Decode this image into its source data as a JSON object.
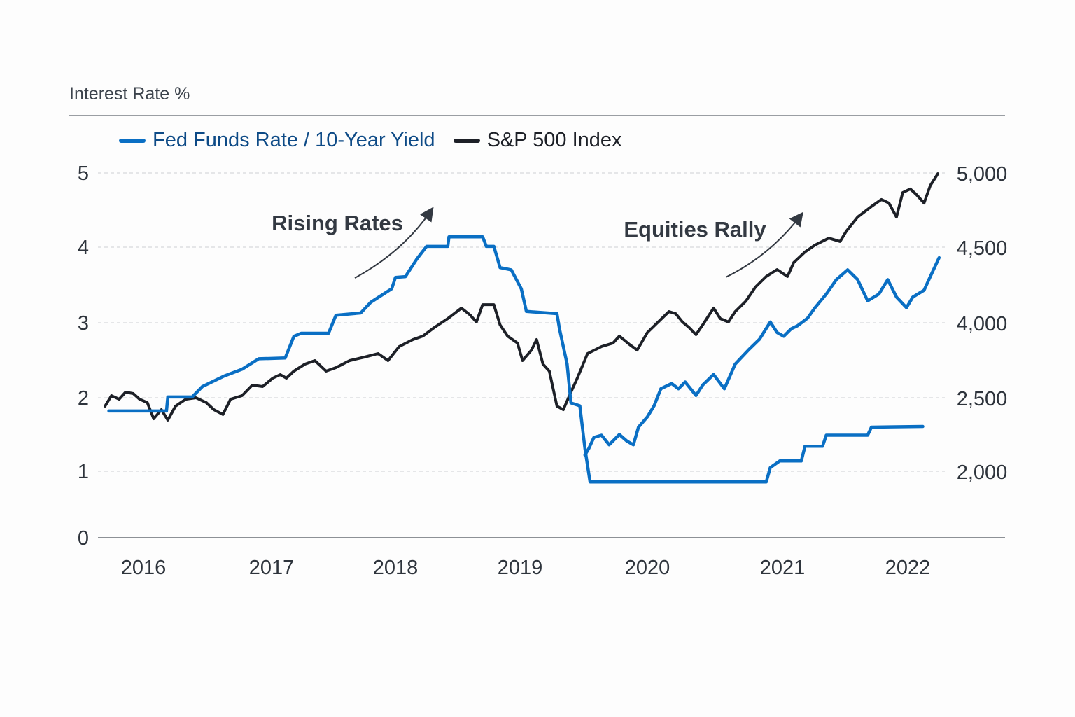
{
  "chart_data": {
    "type": "line",
    "ylabel": "Interest Rate %",
    "legend": [
      {
        "label": "Fed Funds Rate / 10-Year Yield",
        "color": "#0a6fc4"
      },
      {
        "label": "S&P 500 Index",
        "color": "#1d2027"
      }
    ],
    "legend_placement": "top-left",
    "grid": "horizontal dashed",
    "x_ticks": [
      "2016",
      "2017",
      "2018",
      "2019",
      "2020",
      "2021",
      "2022"
    ],
    "y_left_ticks": [
      "0",
      "1",
      "2",
      "3",
      "4",
      "5"
    ],
    "y_left_range": [
      0,
      5
    ],
    "y_right_ticks": [
      {
        "label": "2,000",
        "value": 2000,
        "aligned_left": 1
      },
      {
        "label": "2,500",
        "value": 2500,
        "aligned_left": 2
      },
      {
        "label": "4,000",
        "value": 4000,
        "aligned_left": 3
      },
      {
        "label": "4,500",
        "value": 4500,
        "aligned_left": 4
      },
      {
        "label": "5,000",
        "value": 5000,
        "aligned_left": 5
      }
    ],
    "annotations": [
      {
        "text": "Rising Rates"
      },
      {
        "text": "Equities Rally"
      }
    ],
    "series": [
      {
        "legend_entry": 0,
        "axis": "left",
        "color": "#0a6fc4",
        "points": [
          [
            2015.73,
            1.82
          ],
          [
            2016.18,
            1.82
          ],
          [
            2016.19,
            2.01
          ],
          [
            2016.38,
            2.01
          ],
          [
            2016.46,
            2.15
          ],
          [
            2016.63,
            2.29
          ],
          [
            2016.77,
            2.38
          ],
          [
            2016.9,
            2.52
          ],
          [
            2017.11,
            2.53
          ],
          [
            2017.18,
            2.82
          ],
          [
            2017.24,
            2.86
          ],
          [
            2017.46,
            2.86
          ],
          [
            2017.52,
            3.1
          ],
          [
            2017.72,
            3.13
          ],
          [
            2017.8,
            3.27
          ],
          [
            2017.97,
            3.45
          ],
          [
            2018.0,
            3.6
          ],
          [
            2018.08,
            3.61
          ],
          [
            2018.17,
            3.84
          ],
          [
            2018.25,
            4.01
          ],
          [
            2018.42,
            4.01
          ],
          [
            2018.43,
            4.14
          ],
          [
            2018.7,
            4.14
          ],
          [
            2018.73,
            4.01
          ],
          [
            2018.79,
            4.01
          ],
          [
            2018.84,
            3.73
          ],
          [
            2018.93,
            3.7
          ],
          [
            2019.01,
            3.45
          ],
          [
            2019.05,
            3.15
          ],
          [
            2019.29,
            3.12
          ],
          [
            2019.31,
            2.92
          ],
          [
            2019.37,
            2.45
          ],
          [
            2019.4,
            1.93
          ],
          [
            2019.47,
            1.89
          ],
          [
            2019.51,
            1.31
          ],
          [
            2019.55,
            0.84
          ],
          [
            2020.88,
            0.84
          ],
          [
            2020.91,
            1.05
          ],
          [
            2020.98,
            1.14
          ],
          [
            2021.15,
            1.14
          ],
          [
            2021.18,
            1.34
          ],
          [
            2021.32,
            1.34
          ],
          [
            2021.35,
            1.49
          ],
          [
            2021.68,
            1.49
          ],
          [
            2021.71,
            1.6
          ],
          [
            2022.12,
            1.61
          ]
        ]
      },
      {
        "legend_entry": 0,
        "axis": "left",
        "color": "#0a6fc4",
        "points": [
          [
            2019.51,
            1.22
          ],
          [
            2019.54,
            1.31
          ],
          [
            2019.58,
            1.46
          ],
          [
            2019.64,
            1.49
          ],
          [
            2019.7,
            1.36
          ],
          [
            2019.78,
            1.5
          ],
          [
            2019.84,
            1.41
          ],
          [
            2019.89,
            1.36
          ],
          [
            2019.93,
            1.6
          ],
          [
            2020.0,
            1.74
          ],
          [
            2020.05,
            1.89
          ],
          [
            2020.1,
            2.12
          ],
          [
            2020.18,
            2.19
          ],
          [
            2020.23,
            2.12
          ],
          [
            2020.28,
            2.21
          ],
          [
            2020.36,
            2.03
          ],
          [
            2020.41,
            2.17
          ],
          [
            2020.49,
            2.31
          ],
          [
            2020.57,
            2.12
          ],
          [
            2020.65,
            2.45
          ],
          [
            2020.75,
            2.64
          ],
          [
            2020.83,
            2.78
          ],
          [
            2020.91,
            3.01
          ],
          [
            2020.96,
            2.87
          ],
          [
            2021.01,
            2.82
          ],
          [
            2021.07,
            2.92
          ],
          [
            2021.12,
            2.96
          ],
          [
            2021.2,
            3.06
          ],
          [
            2021.26,
            3.2
          ],
          [
            2021.35,
            3.38
          ],
          [
            2021.43,
            3.57
          ],
          [
            2021.52,
            3.7
          ],
          [
            2021.6,
            3.57
          ],
          [
            2021.68,
            3.29
          ],
          [
            2021.77,
            3.38
          ],
          [
            2021.84,
            3.57
          ],
          [
            2021.91,
            3.34
          ],
          [
            2021.99,
            3.2
          ],
          [
            2022.04,
            3.34
          ],
          [
            2022.13,
            3.43
          ],
          [
            2022.18,
            3.61
          ],
          [
            2022.25,
            3.86
          ]
        ]
      },
      {
        "legend_entry": 1,
        "axis": "right",
        "color": "#1d2027",
        "points": [
          [
            2015.7,
            2443
          ],
          [
            2015.75,
            2542
          ],
          [
            2015.81,
            2490
          ],
          [
            2015.86,
            2612
          ],
          [
            2015.92,
            2584
          ],
          [
            2015.97,
            2490
          ],
          [
            2016.03,
            2467
          ],
          [
            2016.08,
            2357
          ],
          [
            2016.14,
            2419
          ],
          [
            2016.19,
            2348
          ],
          [
            2016.25,
            2443
          ],
          [
            2016.33,
            2490
          ],
          [
            2016.41,
            2500
          ],
          [
            2016.49,
            2467
          ],
          [
            2016.55,
            2419
          ],
          [
            2016.62,
            2386
          ],
          [
            2016.68,
            2490
          ],
          [
            2016.77,
            2542
          ],
          [
            2016.85,
            2752
          ],
          [
            2016.93,
            2725
          ],
          [
            2017.01,
            2893
          ],
          [
            2017.07,
            2962
          ],
          [
            2017.12,
            2893
          ],
          [
            2017.18,
            3033
          ],
          [
            2017.27,
            3173
          ],
          [
            2017.35,
            3243
          ],
          [
            2017.44,
            3033
          ],
          [
            2017.52,
            3103
          ],
          [
            2017.63,
            3243
          ],
          [
            2017.75,
            3313
          ],
          [
            2017.86,
            3383
          ],
          [
            2017.94,
            3243
          ],
          [
            2018.03,
            3523
          ],
          [
            2018.14,
            3664
          ],
          [
            2018.22,
            3734
          ],
          [
            2018.31,
            3902
          ],
          [
            2018.42,
            4028
          ],
          [
            2018.53,
            4097
          ],
          [
            2018.6,
            4051
          ],
          [
            2018.65,
            4005
          ],
          [
            2018.7,
            4120
          ],
          [
            2018.79,
            4120
          ],
          [
            2018.84,
            3958
          ],
          [
            2018.9,
            3734
          ],
          [
            2018.98,
            3593
          ],
          [
            2019.02,
            3243
          ],
          [
            2019.09,
            3453
          ],
          [
            2019.13,
            3664
          ],
          [
            2019.18,
            3173
          ],
          [
            2019.23,
            3033
          ],
          [
            2019.29,
            2443
          ],
          [
            2019.34,
            2419
          ],
          [
            2019.4,
            2612
          ],
          [
            2019.45,
            2893
          ],
          [
            2019.53,
            3383
          ],
          [
            2019.64,
            3523
          ],
          [
            2019.73,
            3593
          ],
          [
            2019.78,
            3734
          ],
          [
            2019.86,
            3565
          ],
          [
            2019.92,
            3453
          ],
          [
            2020.0,
            3804
          ],
          [
            2020.08,
            4005
          ],
          [
            2020.16,
            4074
          ],
          [
            2020.21,
            4060
          ],
          [
            2020.26,
            4005
          ],
          [
            2020.31,
            3902
          ],
          [
            2020.36,
            3762
          ],
          [
            2020.41,
            3958
          ],
          [
            2020.49,
            4097
          ],
          [
            2020.54,
            4028
          ],
          [
            2020.6,
            4005
          ],
          [
            2020.65,
            4074
          ],
          [
            2020.73,
            4144
          ],
          [
            2020.8,
            4236
          ],
          [
            2020.88,
            4306
          ],
          [
            2020.96,
            4352
          ],
          [
            2021.04,
            4306
          ],
          [
            2021.09,
            4398
          ],
          [
            2021.18,
            4468
          ],
          [
            2021.26,
            4514
          ],
          [
            2021.37,
            4561
          ],
          [
            2021.46,
            4538
          ],
          [
            2021.51,
            4608
          ],
          [
            2021.6,
            4703
          ],
          [
            2021.71,
            4774
          ],
          [
            2021.79,
            4821
          ],
          [
            2021.85,
            4797
          ],
          [
            2021.91,
            4703
          ],
          [
            2021.96,
            4868
          ],
          [
            2022.02,
            4892
          ],
          [
            2022.07,
            4854
          ],
          [
            2022.13,
            4797
          ],
          [
            2022.18,
            4915
          ],
          [
            2022.24,
            4995
          ]
        ]
      }
    ]
  }
}
